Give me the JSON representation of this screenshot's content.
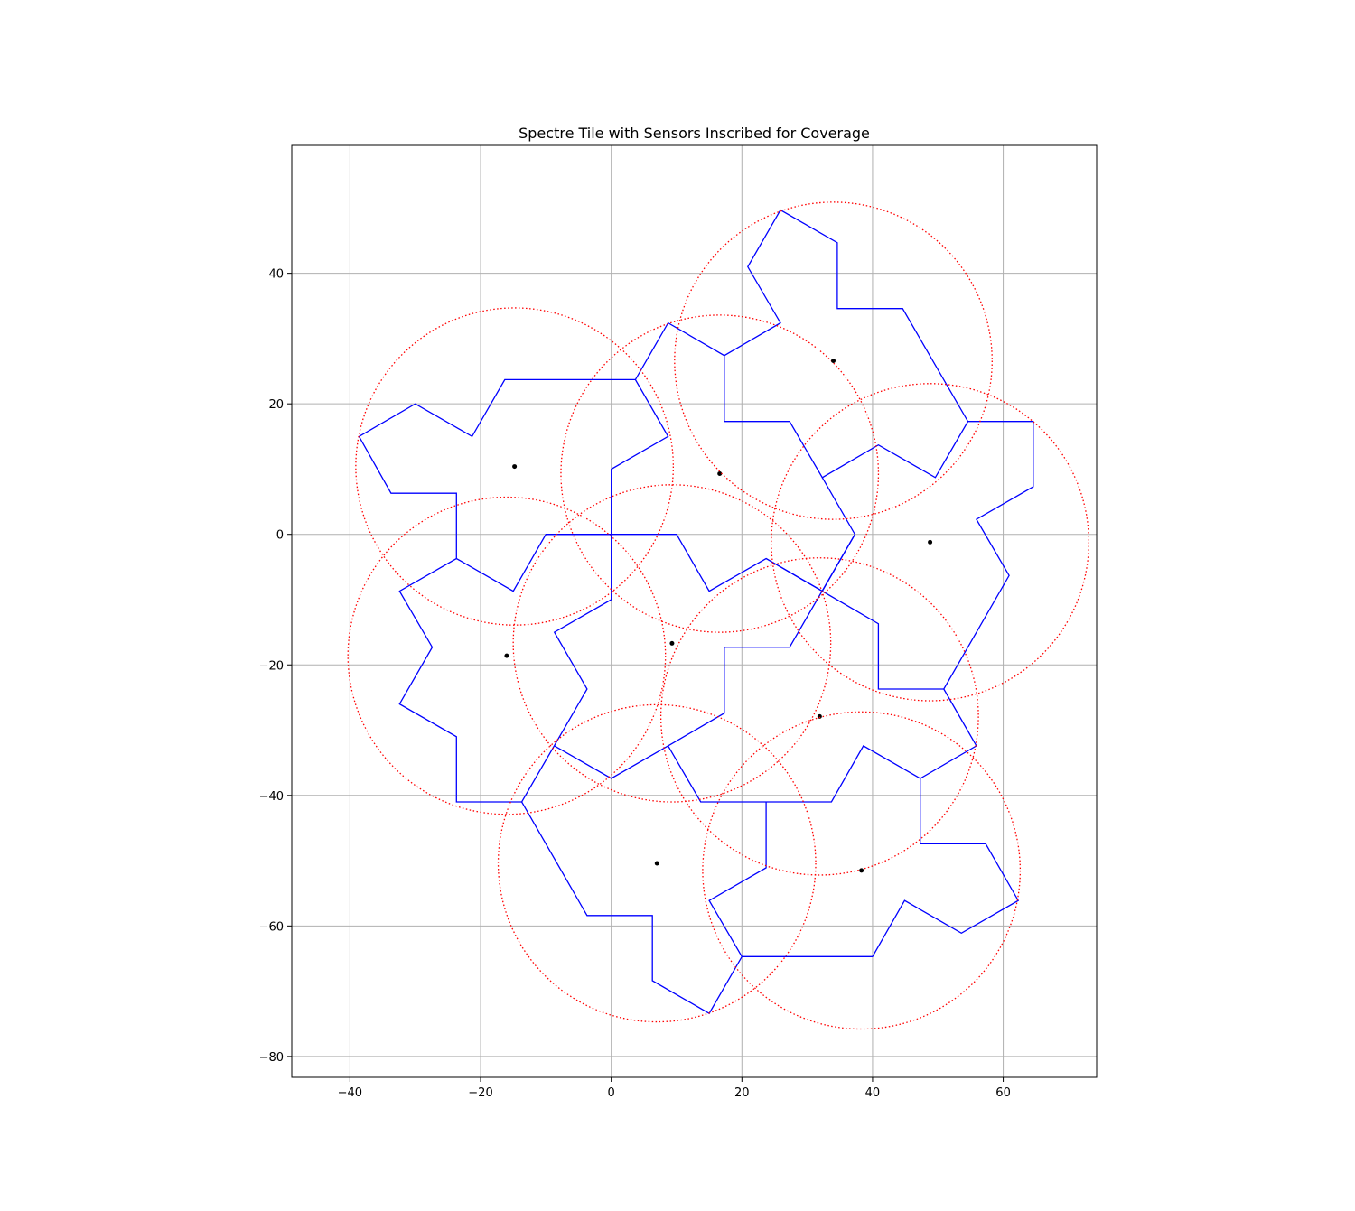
{
  "chart_data": {
    "type": "line",
    "title": "Spectre Tile with Sensors Inscribed for Coverage",
    "xlabel": "",
    "ylabel": "",
    "xlim": [
      -48.9,
      74.3
    ],
    "ylim": [
      -83.2,
      59.6
    ],
    "grid": true,
    "x_ticks": [
      -40,
      -20,
      0,
      20,
      40,
      60
    ],
    "y_ticks": [
      40,
      20,
      0,
      -20,
      -40,
      -60,
      -80
    ],
    "colors": {
      "tile": "#0000ff",
      "circle": "#ff0000",
      "sensor": "#000000",
      "grid": "#b0b0b0"
    },
    "tiles": [
      {
        "points": [
          [
            -38.6,
            15
          ],
          [
            -30,
            20
          ],
          [
            -21.3,
            15
          ],
          [
            -16.3,
            23.7
          ],
          [
            3.7,
            23.7
          ],
          [
            8.7,
            15
          ],
          [
            0,
            10
          ],
          [
            0,
            -10
          ],
          [
            -8.7,
            -15
          ],
          [
            -3.7,
            -23.7
          ],
          [
            -13.7,
            -41
          ],
          [
            -23.7,
            -41
          ],
          [
            -23.7,
            -31
          ],
          [
            -32.4,
            -26
          ],
          [
            -27.4,
            -17.3
          ],
          [
            -32.4,
            -8.7
          ],
          [
            -23.7,
            -3.7
          ],
          [
            -15,
            -8.7
          ],
          [
            -10,
            0
          ],
          [
            0,
            0
          ]
        ]
      },
      {
        "points": [
          [
            -23.7,
            -3.7
          ],
          [
            -23.7,
            6.3
          ],
          [
            -33.7,
            6.3
          ],
          [
            -38.6,
            15
          ]
        ]
      },
      {
        "points": [
          [
            3.7,
            23.7
          ],
          [
            8.7,
            32.4
          ],
          [
            17.3,
            27.4
          ],
          [
            25.9,
            32.4
          ],
          [
            20.9,
            41
          ],
          [
            25.9,
            49.7
          ],
          [
            34.6,
            44.7
          ],
          [
            34.6,
            34.6
          ],
          [
            44.6,
            34.6
          ],
          [
            54.6,
            17.3
          ],
          [
            49.6,
            8.7
          ],
          [
            40.9,
            13.7
          ],
          [
            32.3,
            8.7
          ],
          [
            27.3,
            17.3
          ],
          [
            17.3,
            17.3
          ],
          [
            17.3,
            27.4
          ]
        ]
      },
      {
        "points": [
          [
            54.6,
            17.3
          ],
          [
            64.6,
            17.3
          ],
          [
            64.6,
            7.3
          ],
          [
            55.9,
            2.3
          ],
          [
            60.9,
            -6.3
          ],
          [
            50.9,
            -23.7
          ],
          [
            40.9,
            -23.7
          ],
          [
            40.9,
            -13.7
          ],
          [
            32.3,
            -8.7
          ],
          [
            37.3,
            0
          ],
          [
            32.3,
            8.7
          ]
        ]
      },
      {
        "points": [
          [
            -10,
            0
          ],
          [
            10,
            0
          ],
          [
            15,
            -8.7
          ],
          [
            23.7,
            -3.7
          ],
          [
            32.3,
            -8.7
          ]
        ]
      },
      {
        "points": [
          [
            37.3,
            0
          ],
          [
            27.3,
            -17.3
          ],
          [
            17.3,
            -17.3
          ],
          [
            17.3,
            -27.4
          ],
          [
            8.7,
            -32.4
          ],
          [
            0,
            -37.4
          ],
          [
            -8.7,
            -32.4
          ]
        ]
      },
      {
        "points": [
          [
            32.3,
            -8.7
          ],
          [
            23.7,
            -3.7
          ]
        ]
      },
      {
        "points": [
          [
            8.7,
            -32.4
          ],
          [
            13.7,
            -41
          ],
          [
            33.7,
            -41
          ],
          [
            38.6,
            -32.4
          ],
          [
            47.3,
            -37.4
          ],
          [
            55.9,
            -32.4
          ],
          [
            50.9,
            -23.7
          ]
        ]
      },
      {
        "points": [
          [
            47.3,
            -37.4
          ],
          [
            47.3,
            -47.4
          ],
          [
            57.3,
            -47.4
          ],
          [
            62.3,
            -56.1
          ],
          [
            53.6,
            -61.1
          ],
          [
            44.9,
            -56.1
          ],
          [
            40,
            -64.7
          ],
          [
            20,
            -64.7
          ],
          [
            15,
            -56.1
          ],
          [
            23.7,
            -51.1
          ],
          [
            23.7,
            -41
          ]
        ]
      },
      {
        "points": [
          [
            -13.7,
            -41
          ],
          [
            -3.7,
            -58.4
          ],
          [
            6.3,
            -58.4
          ],
          [
            6.3,
            -68.4
          ],
          [
            15,
            -73.4
          ],
          [
            20,
            -64.7
          ]
        ]
      }
    ],
    "sensors": [
      {
        "x": -14.8,
        "y": 10.4,
        "r": 24.3
      },
      {
        "x": 16.6,
        "y": 9.3,
        "r": 24.3
      },
      {
        "x": 34.0,
        "y": 26.6,
        "r": 24.3
      },
      {
        "x": 48.8,
        "y": -1.2,
        "r": 24.3
      },
      {
        "x": -16.0,
        "y": -18.6,
        "r": 24.3
      },
      {
        "x": 9.3,
        "y": -16.7,
        "r": 24.3
      },
      {
        "x": 31.9,
        "y": -27.9,
        "r": 24.3
      },
      {
        "x": 7.0,
        "y": -50.4,
        "r": 24.3
      },
      {
        "x": 38.3,
        "y": -51.5,
        "r": 24.3
      }
    ]
  }
}
